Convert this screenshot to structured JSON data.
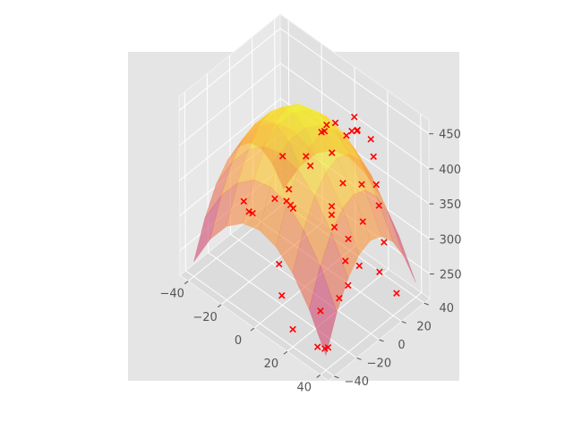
{
  "chart_data": {
    "type": "surface3d+scatter",
    "title": "",
    "xlabel": "",
    "ylabel": "",
    "zlabel": "",
    "xlim": [
      -45,
      45
    ],
    "ylim": [
      -45,
      45
    ],
    "zlim": [
      215,
      470
    ],
    "x_ticks": [
      "−40",
      "−20",
      "0",
      "20",
      "40"
    ],
    "x_tick_values": [
      -40,
      -20,
      0,
      20,
      40
    ],
    "y_ticks": [
      "−40",
      "−20",
      "0",
      "20",
      "40"
    ],
    "y_tick_values": [
      -40,
      -20,
      0,
      20,
      40
    ],
    "z_ticks": [
      "250",
      "300",
      "350",
      "400",
      "450"
    ],
    "z_tick_values": [
      250,
      300,
      350,
      400,
      450
    ],
    "grid": true,
    "colormap": "plasma",
    "surface": {
      "x": [
        -40,
        -30,
        -20,
        -10,
        0,
        10,
        20,
        30,
        40
      ],
      "y": [
        -40,
        -30,
        -20,
        -10,
        0,
        10,
        20,
        30,
        40
      ],
      "model": "z = 460 - 0.07*(x^2 + y^2)",
      "peak": 460
    },
    "scatter_marker": "x",
    "scatter_color": "#ff0000",
    "scatter_points": [
      {
        "x": -42,
        "y": 35,
        "z": 225
      },
      {
        "x": -30,
        "y": 30,
        "z": 265
      },
      {
        "x": -28,
        "y": 25,
        "z": 258
      },
      {
        "x": -25,
        "y": 38,
        "z": 310
      },
      {
        "x": -35,
        "y": 5,
        "z": 255
      },
      {
        "x": -30,
        "y": -10,
        "z": 300
      },
      {
        "x": -20,
        "y": 10,
        "z": 355
      },
      {
        "x": -10,
        "y": 20,
        "z": 345
      },
      {
        "x": -5,
        "y": -5,
        "z": 330
      },
      {
        "x": 10,
        "y": -35,
        "z": 265
      },
      {
        "x": 5,
        "y": -30,
        "z": 295
      },
      {
        "x": 20,
        "y": -40,
        "z": 240
      },
      {
        "x": 35,
        "y": -40,
        "z": 240
      },
      {
        "x": 38,
        "y": -38,
        "z": 240
      },
      {
        "x": 40,
        "y": -38,
        "z": 245
      },
      {
        "x": 30,
        "y": -30,
        "z": 270
      },
      {
        "x": 20,
        "y": 5,
        "z": 390
      },
      {
        "x": 10,
        "y": 10,
        "z": 410
      },
      {
        "x": 0,
        "y": 20,
        "z": 420
      },
      {
        "x": -10,
        "y": 30,
        "z": 380
      },
      {
        "x": -5,
        "y": 35,
        "z": 395
      },
      {
        "x": 5,
        "y": 35,
        "z": 400
      },
      {
        "x": 15,
        "y": 25,
        "z": 430
      },
      {
        "x": 25,
        "y": 25,
        "z": 410
      },
      {
        "x": 20,
        "y": 30,
        "z": 420
      },
      {
        "x": 30,
        "y": 20,
        "z": 385
      },
      {
        "x": 35,
        "y": 15,
        "z": 370
      },
      {
        "x": 32,
        "y": 5,
        "z": 355
      },
      {
        "x": 30,
        "y": -5,
        "z": 340
      },
      {
        "x": 25,
        "y": -10,
        "z": 355
      },
      {
        "x": 20,
        "y": -5,
        "z": 370
      },
      {
        "x": 22,
        "y": -8,
        "z": 365
      },
      {
        "x": 35,
        "y": -15,
        "z": 330
      },
      {
        "x": 40,
        "y": -20,
        "z": 310
      },
      {
        "x": 38,
        "y": -25,
        "z": 295
      },
      {
        "x": 40,
        "y": -10,
        "z": 325
      },
      {
        "x": 42,
        "y": 5,
        "z": 300
      },
      {
        "x": 40,
        "y": 12,
        "z": 330
      },
      {
        "x": 42,
        "y": 20,
        "z": 250
      },
      {
        "x": 10,
        "y": 30,
        "z": 435
      },
      {
        "x": 5,
        "y": 40,
        "z": 395
      },
      {
        "x": -15,
        "y": 40,
        "z": 360
      },
      {
        "x": -20,
        "y": -20,
        "z": 315
      },
      {
        "x": 0,
        "y": -10,
        "z": 340
      },
      {
        "x": 12,
        "y": 20,
        "z": 425
      },
      {
        "x": 28,
        "y": 10,
        "z": 395
      }
    ]
  }
}
